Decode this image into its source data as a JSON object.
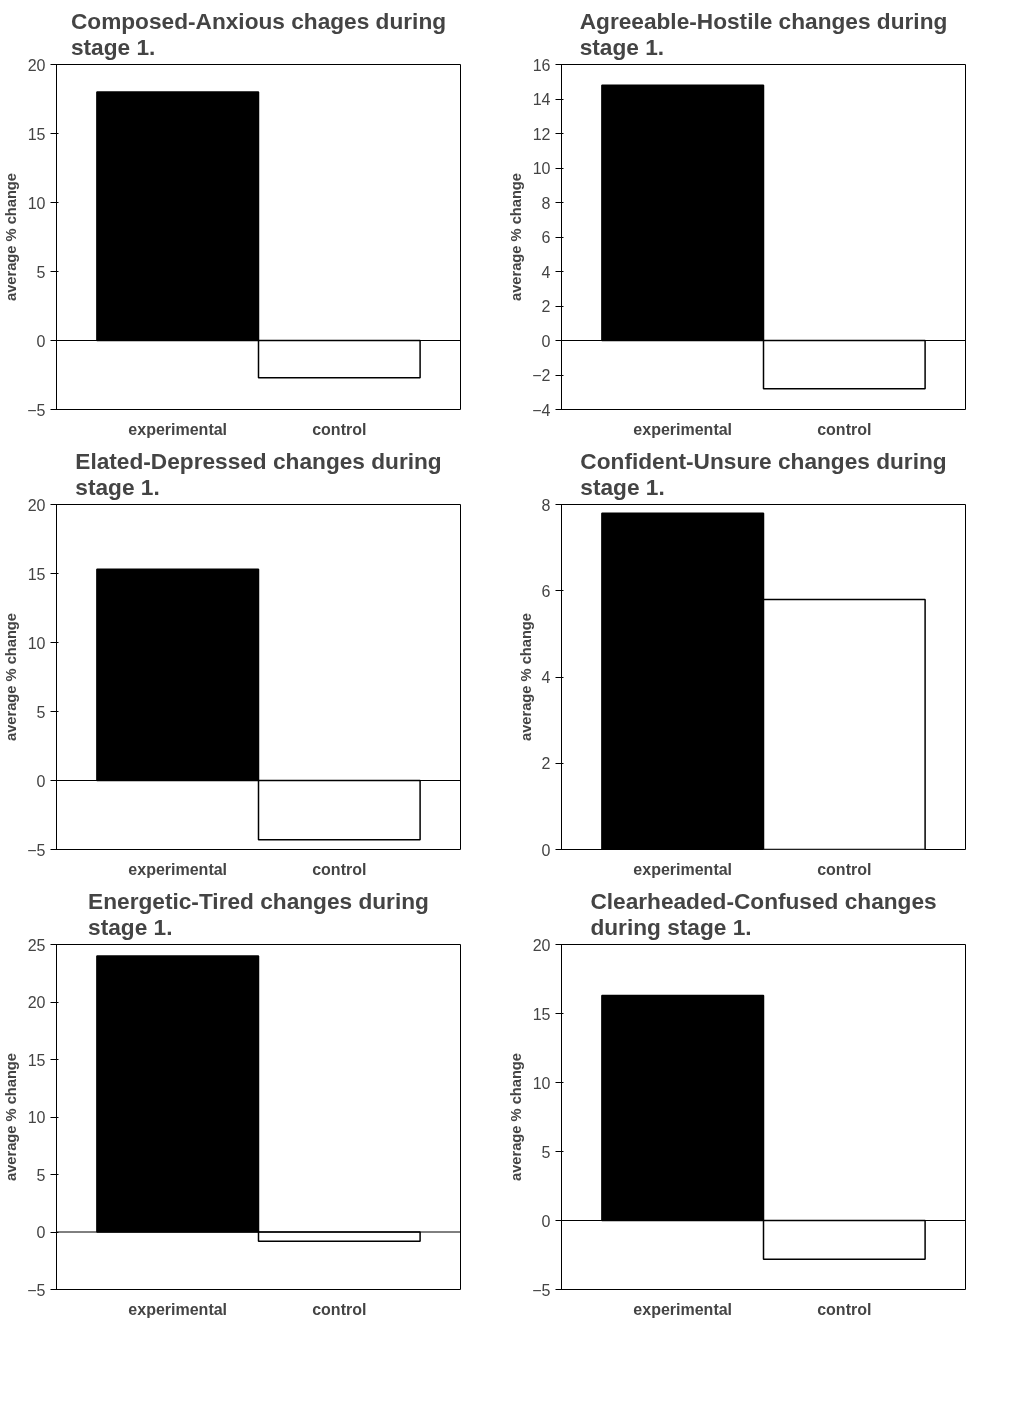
{
  "chart_data": [
    {
      "type": "bar",
      "title": "Composed-Anxious chages during stage 1.",
      "ylabel": "average % change",
      "categories": [
        "experimental",
        "control"
      ],
      "values": [
        18,
        -2.7
      ],
      "colors": [
        "#000000",
        "#ffffff"
      ],
      "ylim": [
        -5,
        20
      ],
      "yticks": [
        -5,
        0,
        5,
        10,
        15,
        20
      ],
      "ref_lines": [
        {
          "axis": "y",
          "value": 0,
          "color": "#000000"
        }
      ],
      "grid": false,
      "legend": false
    },
    {
      "type": "bar",
      "title": "Agreeable-Hostile changes during stage 1.",
      "ylabel": "average % change",
      "categories": [
        "experimental",
        "control"
      ],
      "values": [
        14.8,
        -2.8
      ],
      "colors": [
        "#000000",
        "#ffffff"
      ],
      "ylim": [
        -4,
        16
      ],
      "yticks": [
        -4,
        -2,
        0,
        2,
        4,
        6,
        8,
        10,
        12,
        14,
        16
      ],
      "ref_lines": [
        {
          "axis": "y",
          "value": 0,
          "color": "#000000"
        }
      ],
      "grid": false,
      "legend": false
    },
    {
      "type": "bar",
      "title": "Elated-Depressed changes during stage 1.",
      "ylabel": "average % change",
      "categories": [
        "experimental",
        "control"
      ],
      "values": [
        15.3,
        -4.3
      ],
      "colors": [
        "#000000",
        "#ffffff"
      ],
      "ylim": [
        -5,
        20
      ],
      "yticks": [
        -5,
        0,
        5,
        10,
        15,
        20
      ],
      "ref_lines": [
        {
          "axis": "y",
          "value": 0,
          "color": "#000000"
        }
      ],
      "grid": false,
      "legend": false
    },
    {
      "type": "bar",
      "title": "Confident-Unsure changes during stage 1.",
      "ylabel": "average % change",
      "categories": [
        "experimental",
        "control"
      ],
      "values": [
        7.8,
        5.8
      ],
      "colors": [
        "#000000",
        "#ffffff"
      ],
      "ylim": [
        0,
        8
      ],
      "yticks": [
        0,
        2,
        4,
        6,
        8
      ],
      "grid": false,
      "legend": false
    },
    {
      "type": "bar",
      "title": "Energetic-Tired changes during stage 1.",
      "ylabel": "average % change",
      "categories": [
        "experimental",
        "control"
      ],
      "values": [
        24,
        -0.8
      ],
      "colors": [
        "#000000",
        "#ffffff"
      ],
      "ylim": [
        -5,
        25
      ],
      "yticks": [
        -5,
        0,
        5,
        10,
        15,
        20,
        25
      ],
      "ref_lines": [
        {
          "axis": "y",
          "value": 0,
          "color": "#000000"
        }
      ],
      "grid": false,
      "legend": false
    },
    {
      "type": "bar",
      "title": "Clearheaded-Confused changes during stage 1.",
      "ylabel": "average % change",
      "categories": [
        "experimental",
        "control"
      ],
      "values": [
        16.3,
        -2.8
      ],
      "colors": [
        "#000000",
        "#ffffff"
      ],
      "ylim": [
        -5,
        20
      ],
      "yticks": [
        -5,
        0,
        5,
        10,
        15,
        20
      ],
      "ref_lines": [
        {
          "axis": "y",
          "value": 0,
          "color": "#000000"
        }
      ],
      "grid": false,
      "legend": false
    }
  ]
}
